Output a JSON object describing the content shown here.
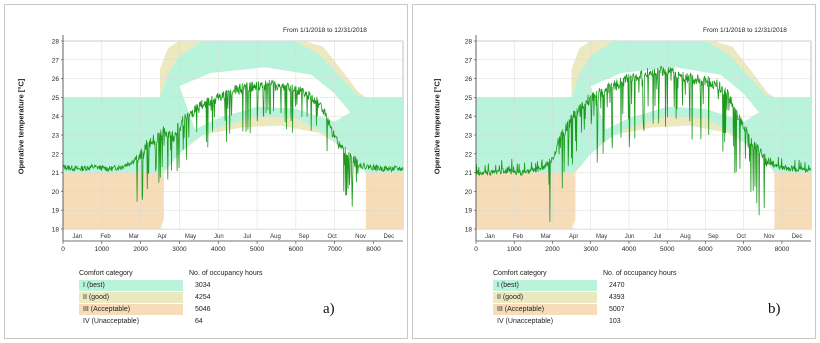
{
  "chart_data": [
    {
      "id": "a",
      "type": "line",
      "panel_label": "a)",
      "date_range": "From 1/1/2018 to 12/31/2018",
      "ylabel": "Operative temperature [°C]",
      "ylim": [
        18,
        28
      ],
      "yticks": [
        "18",
        "19",
        "20",
        "21",
        "22",
        "23",
        "24",
        "25",
        "26",
        "27",
        "28"
      ],
      "xlim": [
        0,
        8760
      ],
      "xticks": [
        "0",
        "1000",
        "2000",
        "3000",
        "4000",
        "5000",
        "6000",
        "7000",
        "8000"
      ],
      "months": [
        "Jan",
        "Feb",
        "Mar",
        "Apr",
        "May",
        "Jun",
        "Jul",
        "Aug",
        "Sep",
        "Oct",
        "Nov",
        "Dec"
      ],
      "series": [
        {
          "values": [
            [
              0,
              21.3
            ],
            [
              400,
              21.2
            ],
            [
              800,
              21.3
            ],
            [
              1200,
              21.2
            ],
            [
              1500,
              21.3
            ],
            [
              1800,
              21.6
            ],
            [
              2000,
              22.0
            ],
            [
              2200,
              22.6
            ],
            [
              2400,
              22.8
            ],
            [
              2600,
              23.2
            ],
            [
              2800,
              22.8
            ],
            [
              3000,
              23.6
            ],
            [
              3200,
              23.9
            ],
            [
              3400,
              24.3
            ],
            [
              3600,
              24.6
            ],
            [
              3800,
              24.8
            ],
            [
              4000,
              25.0
            ],
            [
              4300,
              25.2
            ],
            [
              4600,
              25.5
            ],
            [
              5000,
              25.6
            ],
            [
              5300,
              25.7
            ],
            [
              5600,
              25.6
            ],
            [
              6000,
              25.4
            ],
            [
              6300,
              25.2
            ],
            [
              6600,
              24.7
            ],
            [
              6800,
              23.9
            ],
            [
              7000,
              22.8
            ],
            [
              7200,
              22.2
            ],
            [
              7400,
              21.9
            ],
            [
              7600,
              21.4
            ],
            [
              7900,
              21.3
            ],
            [
              8300,
              21.2
            ],
            [
              8760,
              21.2
            ]
          ]
        }
      ],
      "comfort_table": {
        "header_category": "Comfort category",
        "header_hours": "No. of occupancy hours",
        "rows": [
          {
            "category": "I (best)",
            "hours": "3034",
            "color": "#b9f3dc"
          },
          {
            "category": "II (good)",
            "hours": "4254",
            "color": "#ece9c0"
          },
          {
            "category": "III (Acceptable)",
            "hours": "5046",
            "color": "#f6dcb8"
          },
          {
            "category": "IV (Unacceptable)",
            "hours": "64",
            "color": "#ffffff"
          }
        ]
      }
    },
    {
      "id": "b",
      "type": "line",
      "panel_label": "b)",
      "date_range": "From 1/1/2018 to 12/31/2018",
      "ylabel": "Operative temperature [°C]",
      "ylim": [
        18,
        28
      ],
      "yticks": [
        "18",
        "19",
        "20",
        "21",
        "22",
        "23",
        "24",
        "25",
        "26",
        "27",
        "28"
      ],
      "xlim": [
        0,
        8760
      ],
      "xticks": [
        "0",
        "1000",
        "2000",
        "3000",
        "4000",
        "5000",
        "6000",
        "7000",
        "8000"
      ],
      "months": [
        "Jan",
        "Feb",
        "Mar",
        "Apr",
        "May",
        "Jun",
        "Jul",
        "Aug",
        "Sep",
        "Oct",
        "Nov",
        "Dec"
      ],
      "series": [
        {
          "values": [
            [
              0,
              21.0
            ],
            [
              400,
              21.0
            ],
            [
              800,
              21.1
            ],
            [
              1200,
              21.0
            ],
            [
              1500,
              21.1
            ],
            [
              1800,
              21.3
            ],
            [
              2000,
              21.8
            ],
            [
              2200,
              22.8
            ],
            [
              2400,
              23.5
            ],
            [
              2600,
              24.2
            ],
            [
              2800,
              24.6
            ],
            [
              3000,
              25.0
            ],
            [
              3200,
              25.2
            ],
            [
              3400,
              25.4
            ],
            [
              3600,
              25.6
            ],
            [
              3800,
              25.8
            ],
            [
              4000,
              26.0
            ],
            [
              4300,
              26.2
            ],
            [
              4600,
              26.4
            ],
            [
              5000,
              26.4
            ],
            [
              5300,
              26.2
            ],
            [
              5600,
              26.0
            ],
            [
              6000,
              25.9
            ],
            [
              6300,
              25.7
            ],
            [
              6600,
              25.1
            ],
            [
              6800,
              24.3
            ],
            [
              7000,
              23.4
            ],
            [
              7200,
              22.6
            ],
            [
              7400,
              22.1
            ],
            [
              7600,
              21.6
            ],
            [
              7900,
              21.3
            ],
            [
              8300,
              21.2
            ],
            [
              8760,
              21.1
            ]
          ]
        }
      ],
      "comfort_table": {
        "header_category": "Comfort category",
        "header_hours": "No. of occupancy hours",
        "rows": [
          {
            "category": "I (best)",
            "hours": "2470",
            "color": "#b9f3dc"
          },
          {
            "category": "II (good)",
            "hours": "4393",
            "color": "#ece9c0"
          },
          {
            "category": "III (Acceptable)",
            "hours": "5007",
            "color": "#f6dcb8"
          },
          {
            "category": "IV (Unacceptable)",
            "hours": "103",
            "color": "#ffffff"
          }
        ]
      }
    }
  ],
  "colors": {
    "best": "#b9f3dc",
    "good": "#ece9c0",
    "acceptable": "#f6dcb8",
    "line": "#1e9a1e"
  }
}
